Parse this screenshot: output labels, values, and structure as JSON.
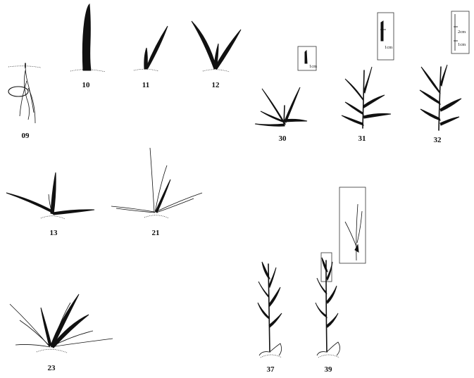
{
  "stages": [
    {
      "id": "s09",
      "label": "09"
    },
    {
      "id": "s10",
      "label": "10"
    },
    {
      "id": "s11",
      "label": "11"
    },
    {
      "id": "s12",
      "label": "12"
    },
    {
      "id": "s13",
      "label": "13"
    },
    {
      "id": "s21",
      "label": "21"
    },
    {
      "id": "s23",
      "label": "23"
    },
    {
      "id": "s30",
      "label": "30"
    },
    {
      "id": "s31",
      "label": "31"
    },
    {
      "id": "s32",
      "label": "32"
    },
    {
      "id": "s37",
      "label": "37"
    },
    {
      "id": "s39",
      "label": "39"
    }
  ],
  "insets": {
    "s30": [
      "1cm"
    ],
    "s31": [
      "1cm"
    ],
    "s32": [
      "2cm",
      "1cm"
    ]
  }
}
